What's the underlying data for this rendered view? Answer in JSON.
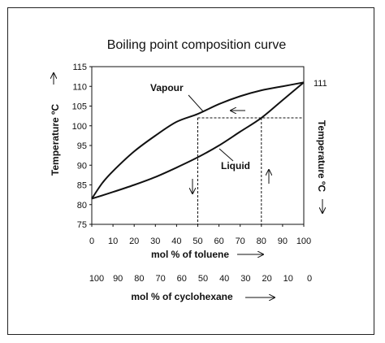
{
  "chart_data": {
    "type": "line",
    "title": "Boiling point composition curve",
    "xlabel": "mol % of toluene",
    "xlabel2": "mol % of cyclohexane",
    "ylabel_left": "Temperature ºC",
    "ylabel_right": "Temperature ºC",
    "xlim": [
      0,
      100
    ],
    "ylim": [
      75,
      115
    ],
    "x_ticks": [
      "0",
      "10",
      "20",
      "30",
      "40",
      "50",
      "60",
      "70",
      "80",
      "90",
      "100"
    ],
    "x2_ticks": [
      "100",
      "90",
      "80",
      "70",
      "60",
      "50",
      "40",
      "30",
      "20",
      "10",
      "0"
    ],
    "y_ticks": [
      "75",
      "80",
      "85",
      "90",
      "95",
      "100",
      "105",
      "110",
      "115"
    ],
    "grid": false,
    "series": [
      {
        "name": "Vapour",
        "x": [
          0,
          5,
          10,
          20,
          30,
          40,
          50,
          60,
          70,
          80,
          90,
          100
        ],
        "y": [
          81.5,
          85.5,
          88.5,
          93.5,
          97.5,
          101,
          103,
          105.5,
          107.5,
          109,
          110,
          111
        ]
      },
      {
        "name": "Liquid",
        "x": [
          0,
          10,
          20,
          30,
          40,
          50,
          60,
          70,
          80,
          90,
          100
        ],
        "y": [
          81.5,
          83.2,
          85,
          87,
          89.4,
          92,
          95,
          98.5,
          102,
          106.5,
          111
        ]
      }
    ],
    "annotations": {
      "end_label": "111",
      "tie_line_temp": 102,
      "tie_line_x_vapour": 50,
      "tie_line_x_liquid": 80
    }
  }
}
